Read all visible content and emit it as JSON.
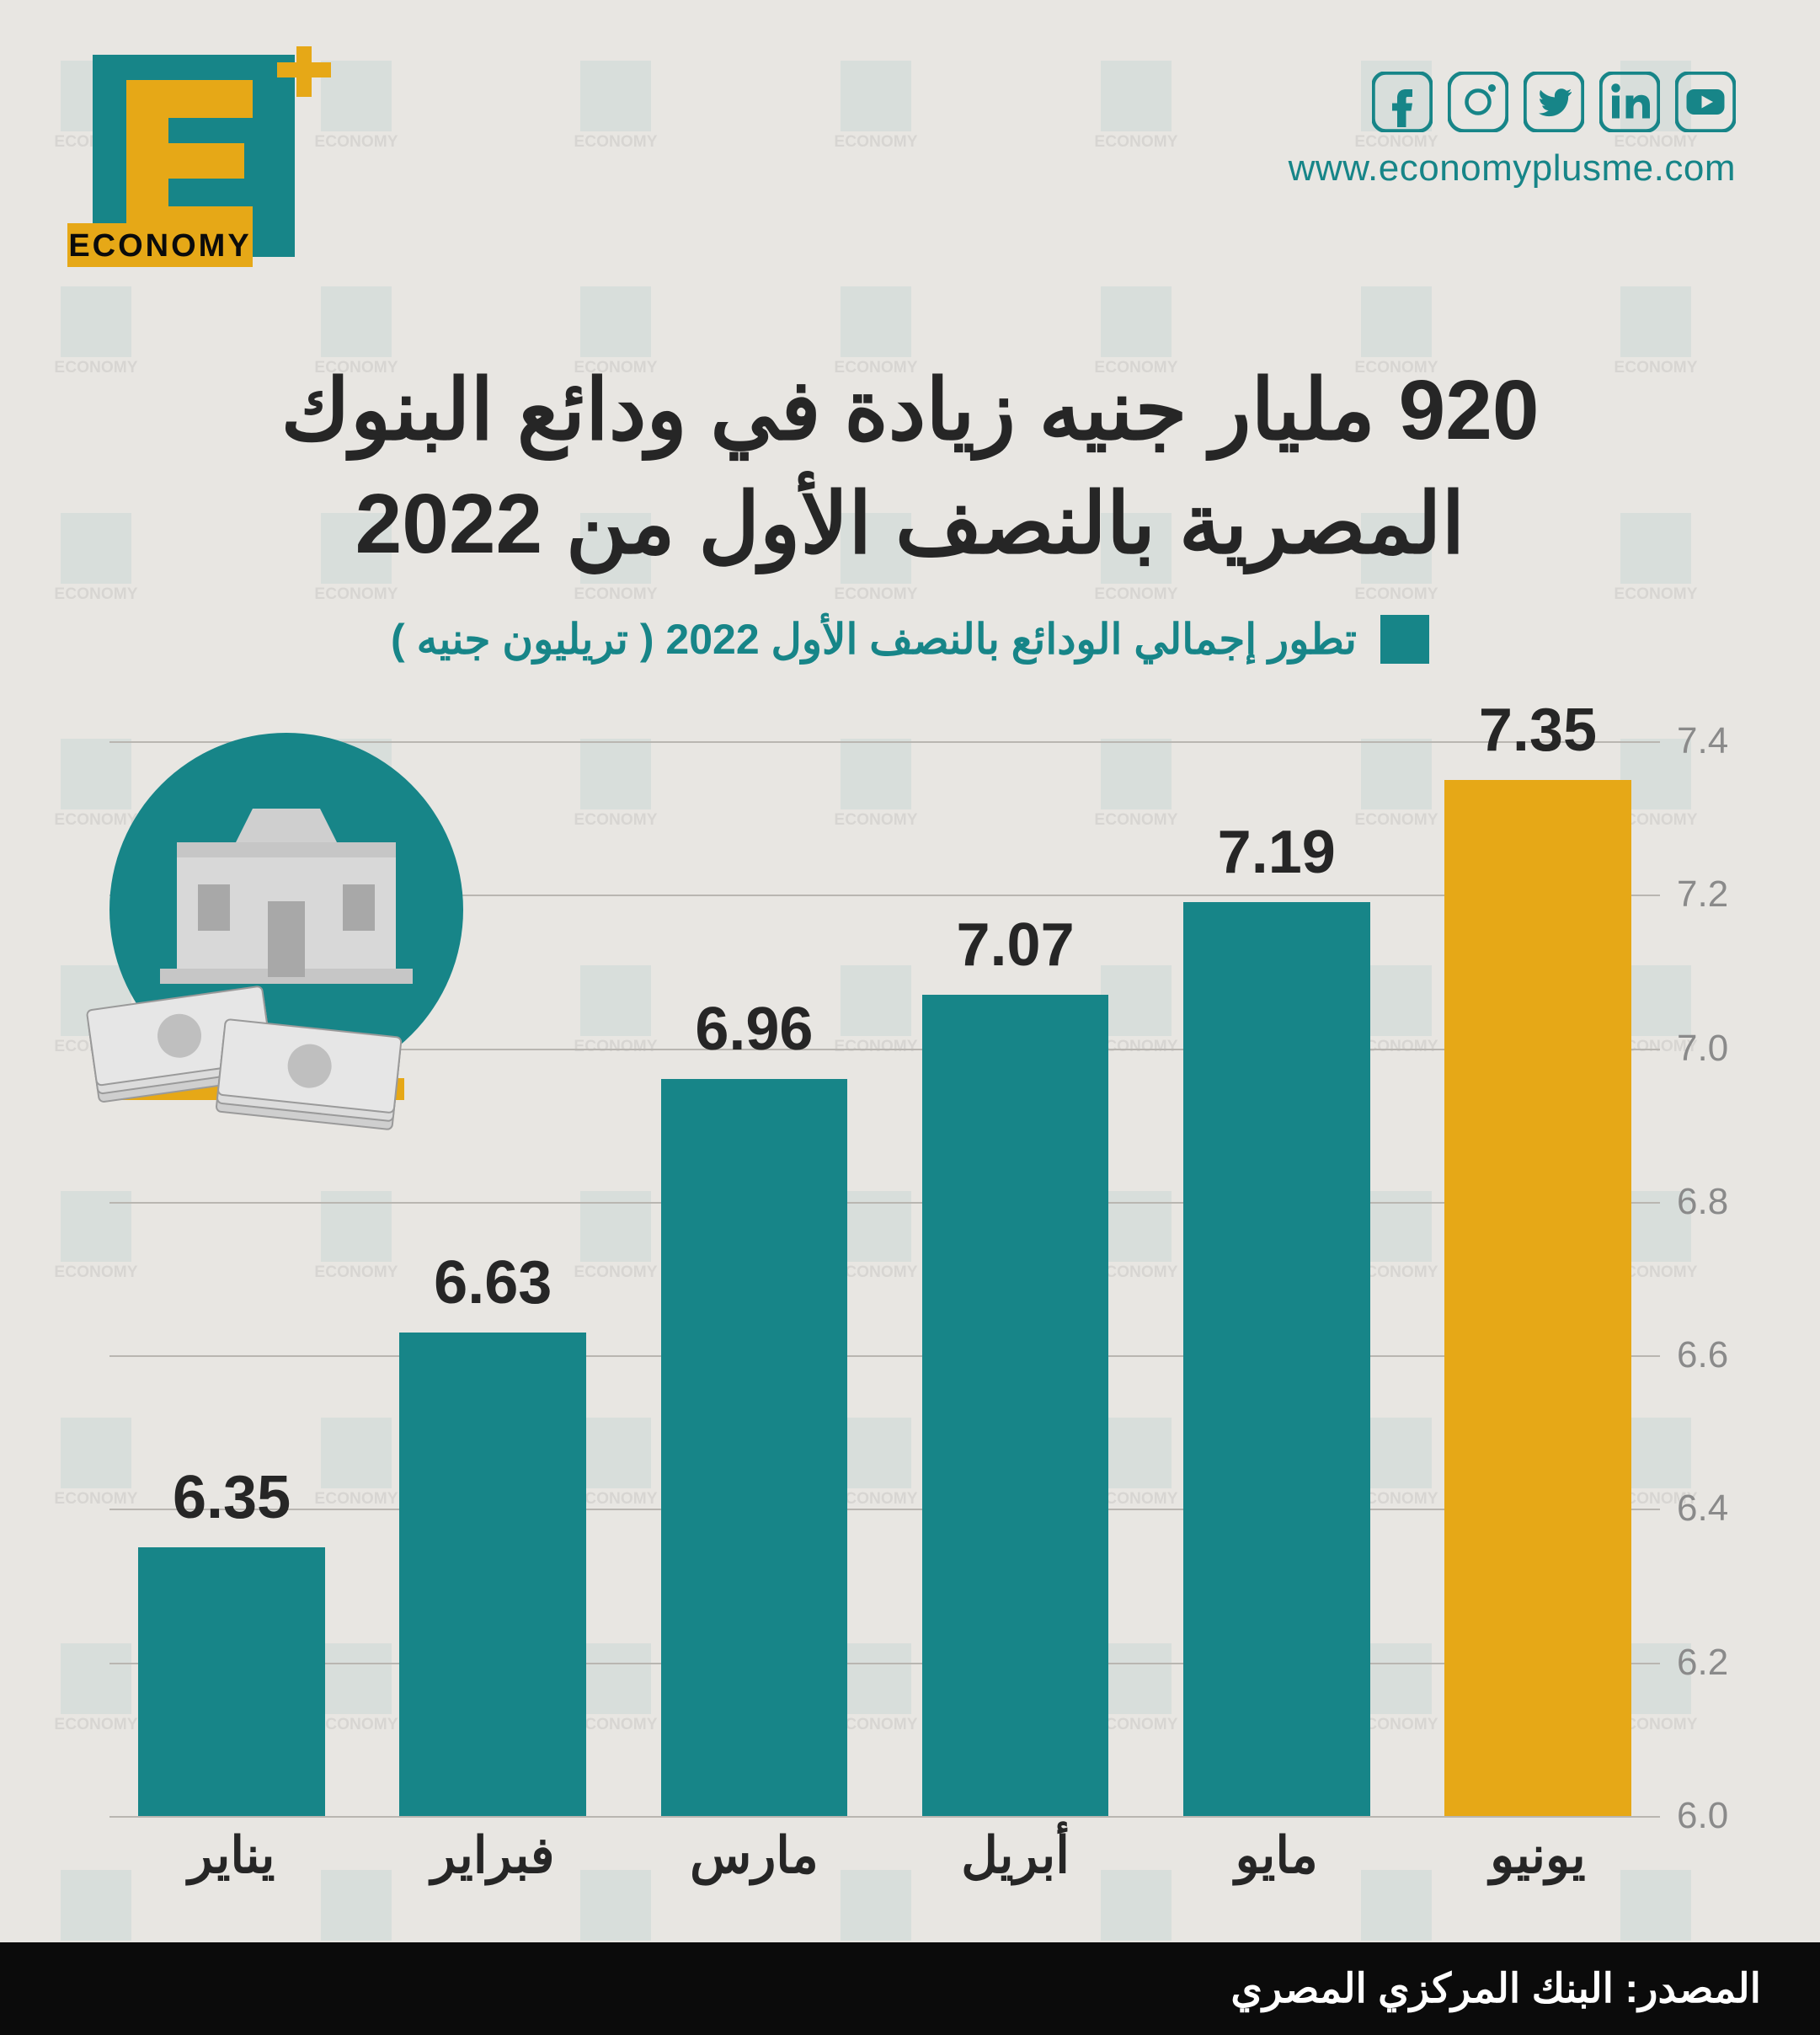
{
  "brand": {
    "name": "ECONOMY",
    "plus_color": "#e6a817",
    "teal": "#178588",
    "dark": "#0b0b0b",
    "website": "www.economyplusme.com"
  },
  "social": {
    "icon_color": "#178588",
    "icons": [
      "facebook",
      "instagram",
      "twitter",
      "linkedin",
      "youtube"
    ]
  },
  "title_line1": "920 مليار جنيه زيادة في ودائع البنوك",
  "title_line2": "المصرية بالنصف الأول من 2022",
  "subtitle": "تطور إجمالي الودائع بالنصف الأول 2022 ( تريليون جنيه )",
  "legend_swatch_color": "#178588",
  "chart": {
    "type": "bar",
    "ymin": 6.0,
    "ymax": 7.4,
    "ytick_step": 0.2,
    "yticks": [
      6.0,
      6.2,
      6.4,
      6.6,
      6.8,
      7.0,
      7.2,
      7.4
    ],
    "grid_color": "#b9b6b1",
    "tick_label_color": "#8a8a8a",
    "tick_fontsize": 44,
    "value_fontsize": 72,
    "value_color": "#262626",
    "xlabel_fontsize": 60,
    "xlabel_color": "#262626",
    "bar_width_ratio": 0.82,
    "categories": [
      "يناير",
      "فبراير",
      "مارس",
      "أبريل",
      "مايو",
      "يونيو"
    ],
    "values": [
      6.35,
      6.63,
      6.96,
      7.07,
      7.19,
      7.35
    ],
    "bar_colors": [
      "#178588",
      "#178588",
      "#178588",
      "#178588",
      "#178588",
      "#e6a817"
    ],
    "highlight_index": 5
  },
  "illustration": {
    "circle_color": "#178588",
    "accent_bar_color": "#e6a817",
    "building_color": "#d8d8d8",
    "money_color": "#bfbfbf"
  },
  "footer": {
    "text": "المصدر: البنك المركزي المصري",
    "bg": "#0b0b0b",
    "fg": "#ffffff"
  },
  "background_color": "#e8e6e2"
}
